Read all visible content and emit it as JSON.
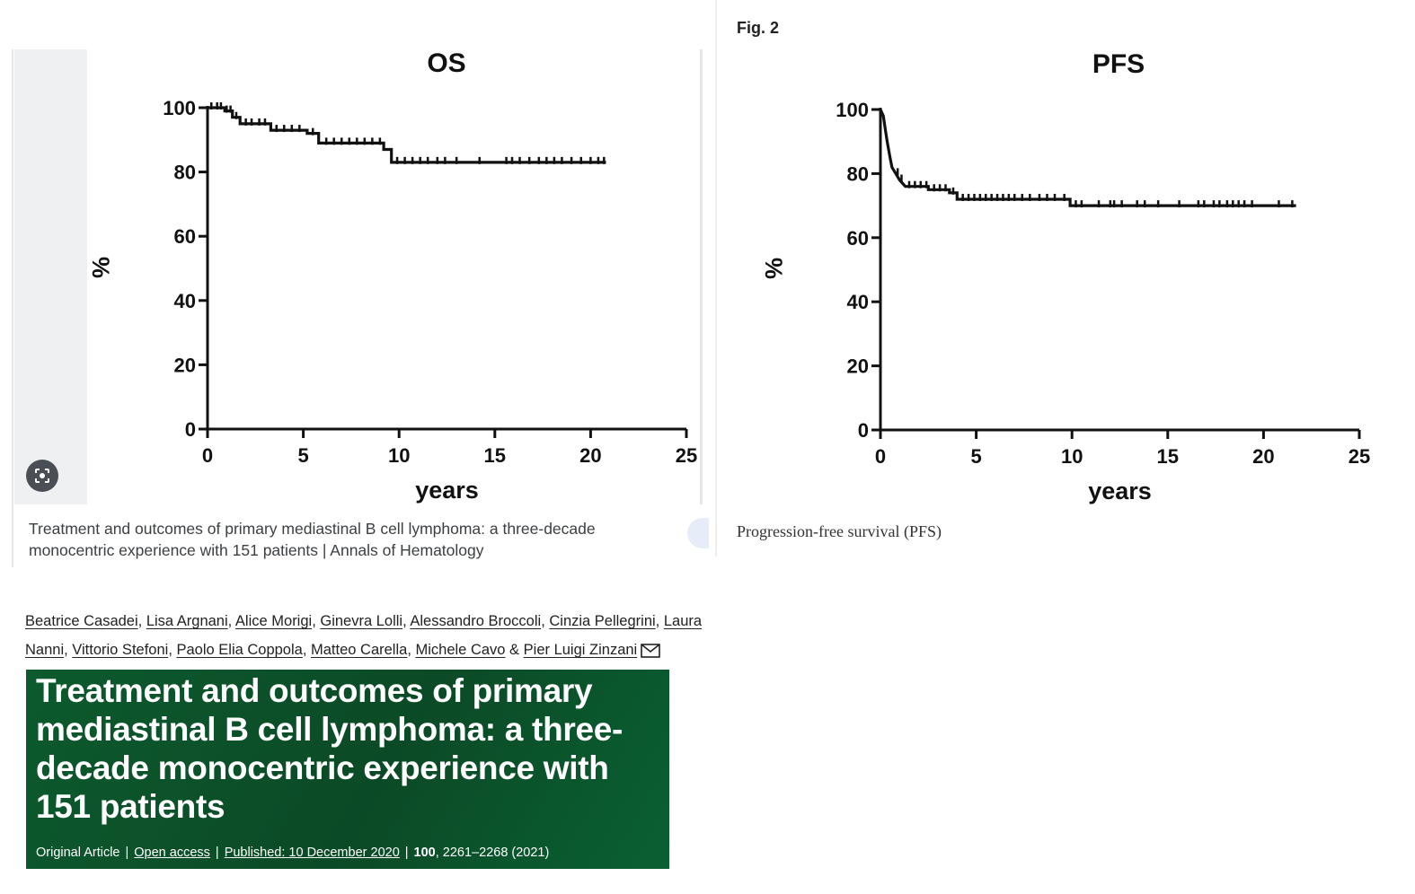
{
  "left_panel": {
    "caption": "Treatment and outcomes of primary mediastinal B cell lymphoma: a three-decade monocentric experience with 151 patients | Annals of Hematology",
    "lens_icon": "google-lens-icon"
  },
  "right_panel": {
    "fig_label": "Fig. 2",
    "caption": "Progression-free survival (PFS)"
  },
  "chart_data": [
    {
      "type": "line",
      "title": "OS",
      "xlabel": "years",
      "ylabel": "%",
      "xlim": [
        0,
        25
      ],
      "ylim": [
        0,
        100
      ],
      "xticks": [
        "0",
        "5",
        "10",
        "15",
        "20",
        "25"
      ],
      "yticks": [
        "0",
        "20",
        "40",
        "60",
        "80",
        "100"
      ],
      "grid": false,
      "step": [
        [
          0,
          100
        ],
        [
          0.9,
          100
        ],
        [
          0.9,
          99
        ],
        [
          1.3,
          99
        ],
        [
          1.3,
          97
        ],
        [
          1.7,
          97
        ],
        [
          1.7,
          95
        ],
        [
          3.3,
          95
        ],
        [
          3.3,
          93
        ],
        [
          5.2,
          93
        ],
        [
          5.2,
          92
        ],
        [
          5.8,
          92
        ],
        [
          5.8,
          89
        ],
        [
          9.2,
          89
        ],
        [
          9.2,
          87
        ],
        [
          9.6,
          87
        ],
        [
          9.6,
          83
        ],
        [
          20.8,
          83
        ]
      ],
      "censored": [
        0.2,
        0.5,
        0.7,
        1.0,
        1.2,
        1.5,
        2.0,
        2.3,
        2.7,
        3.0,
        3.6,
        4.0,
        4.4,
        4.8,
        5.5,
        6.2,
        6.6,
        7.0,
        7.4,
        7.8,
        8.2,
        8.6,
        9.0,
        9.9,
        10.3,
        10.7,
        11.1,
        11.5,
        12.0,
        12.4,
        13.0,
        14.2,
        15.6,
        15.9,
        16.3,
        16.8,
        17.3,
        17.7,
        18.1,
        18.5,
        19.0,
        19.5,
        20.0,
        20.4,
        20.7
      ]
    },
    {
      "type": "line",
      "title": "PFS",
      "xlabel": "years",
      "ylabel": "%",
      "xlim": [
        0,
        25
      ],
      "ylim": [
        0,
        100
      ],
      "xticks": [
        "0",
        "5",
        "10",
        "15",
        "20",
        "25"
      ],
      "yticks": [
        "0",
        "20",
        "40",
        "60",
        "80",
        "100"
      ],
      "grid": false,
      "step": [
        [
          0,
          100
        ],
        [
          0.15,
          98
        ],
        [
          0.25,
          94
        ],
        [
          0.35,
          90
        ],
        [
          0.5,
          85
        ],
        [
          0.6,
          82
        ],
        [
          0.8,
          80
        ],
        [
          1.0,
          78
        ],
        [
          1.3,
          76
        ],
        [
          2.5,
          76
        ],
        [
          2.5,
          75
        ],
        [
          3.6,
          75
        ],
        [
          3.6,
          74
        ],
        [
          4.0,
          74
        ],
        [
          4.0,
          72
        ],
        [
          9.9,
          72
        ],
        [
          9.9,
          70
        ],
        [
          21.7,
          70
        ]
      ],
      "censored": [
        0.9,
        1.1,
        1.5,
        1.8,
        2.1,
        2.4,
        2.8,
        3.1,
        3.4,
        3.8,
        4.3,
        4.6,
        4.9,
        5.2,
        5.5,
        5.8,
        6.1,
        6.4,
        6.7,
        7.0,
        7.4,
        7.8,
        8.3,
        8.7,
        9.1,
        9.6,
        10.2,
        10.5,
        11.4,
        12.0,
        12.2,
        12.6,
        13.4,
        13.8,
        14.5,
        15.6,
        16.6,
        16.9,
        17.4,
        17.7,
        18.1,
        18.4,
        18.7,
        19.0,
        19.4,
        20.8,
        21.5
      ]
    }
  ],
  "article": {
    "authors": [
      "Beatrice Casadei",
      "Lisa Argnani",
      "Alice Morigi",
      "Ginevra Lolli",
      "Alessandro Broccoli",
      "Cinzia Pellegrini",
      "Laura Nanni",
      "Vittorio Stefoni",
      "Paolo Elia Coppola",
      "Matteo Carella",
      "Michele Cavo",
      "Pier Luigi Zinzani"
    ],
    "title": "Treatment and outcomes of primary mediastinal B cell lymphoma: a three-decade monocentric experience with 151 patients",
    "article_type": "Original Article",
    "open_access": "Open access",
    "published": "Published: 10 December 2020",
    "volume": "100",
    "pages_year": ", 2261–2268 (2021)",
    "colors": {
      "banner": "#0b5a2e",
      "banner_text": "#ffffff"
    }
  }
}
